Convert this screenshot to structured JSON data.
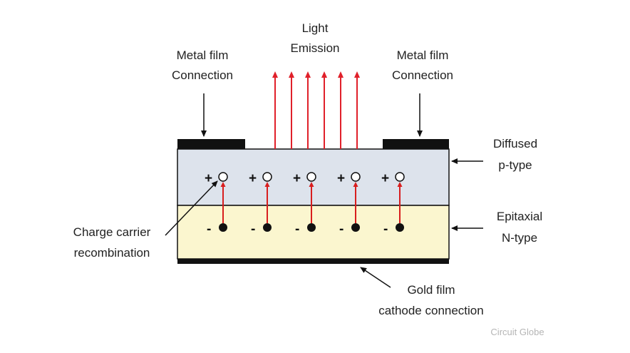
{
  "labels": {
    "light_line1": "Light",
    "light_line2": "Emission",
    "metal_left_line1": "Metal film",
    "metal_left_line2": "Connection",
    "metal_right_line1": "Metal film",
    "metal_right_line2": "Connection",
    "diffused_line1": "Diffused",
    "diffused_line2": "p-type",
    "epitaxial_line1": "Epitaxial",
    "epitaxial_line2": "N-type",
    "charge_line1": "Charge carrier",
    "charge_line2": "recombination",
    "gold_line1": "Gold film",
    "gold_line2": "cathode connection"
  },
  "symbols": {
    "plus": "+",
    "minus": "-"
  },
  "watermark": "Circuit Globe",
  "colors": {
    "p_layer": "#dde3ec",
    "n_layer": "#fbf6cf",
    "contact": "#111111",
    "emission_arrow": "#e0202a",
    "recombination_arrow": "#d81e1e",
    "pointer": "#111111"
  }
}
